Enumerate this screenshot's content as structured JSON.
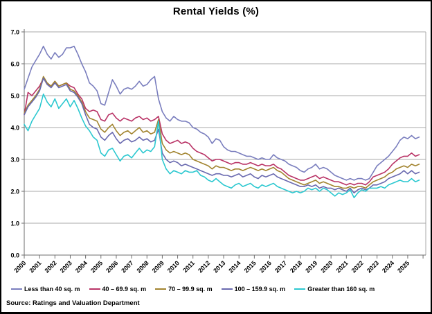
{
  "chart_data": {
    "type": "line",
    "title": "Rental Yields (%)",
    "source_note": "Source: Ratings and Valuation Department",
    "xlabel": "",
    "ylabel": "",
    "grid": true,
    "legend_position": "bottom",
    "ylim": [
      0.0,
      7.0
    ],
    "y_tick_labels": [
      "0.0",
      "1.0",
      "2.0",
      "3.0",
      "4.0",
      "5.0",
      "6.0",
      "7.0"
    ],
    "x_start": 2000,
    "x_step": 0.25,
    "x_tick_labels": [
      "2000",
      "2001",
      "2002",
      "2003",
      "2004",
      "2005",
      "2006",
      "2007",
      "2008",
      "2009",
      "2010",
      "2011",
      "2012",
      "2013",
      "2014",
      "2015",
      "2016",
      "2017",
      "2018",
      "2019",
      "2020",
      "2021",
      "2022",
      "2023",
      "2024",
      "2025"
    ],
    "colors": {
      "grid": "#a8a8a8",
      "axis": "#6e6e6e",
      "text": "#000000"
    },
    "series": [
      {
        "name": "Less than 40 sq. m",
        "color": "#7a7ebe",
        "values": [
          5.2,
          5.55,
          5.9,
          6.1,
          6.3,
          6.55,
          6.3,
          6.15,
          6.35,
          6.2,
          6.3,
          6.5,
          6.5,
          6.55,
          6.3,
          6.0,
          5.75,
          5.4,
          5.3,
          5.15,
          4.75,
          4.7,
          5.1,
          5.5,
          5.3,
          5.05,
          5.2,
          5.25,
          5.2,
          5.3,
          5.45,
          5.3,
          5.35,
          5.5,
          5.6,
          4.9,
          4.5,
          4.3,
          4.2,
          4.35,
          4.25,
          4.2,
          4.2,
          4.15,
          4.0,
          3.95,
          3.85,
          3.8,
          3.7,
          3.5,
          3.65,
          3.6,
          3.4,
          3.3,
          3.25,
          3.25,
          3.2,
          3.15,
          3.1,
          3.1,
          3.05,
          3.0,
          3.05,
          3.0,
          3.0,
          3.15,
          3.05,
          3.0,
          2.95,
          2.85,
          2.8,
          2.75,
          2.65,
          2.6,
          2.7,
          2.75,
          2.85,
          2.7,
          2.75,
          2.7,
          2.6,
          2.5,
          2.45,
          2.4,
          2.35,
          2.4,
          2.35,
          2.4,
          2.4,
          2.35,
          2.4,
          2.6,
          2.8,
          2.9,
          3.0,
          3.1,
          3.25,
          3.4,
          3.6,
          3.7,
          3.65,
          3.75,
          3.65,
          3.7
        ]
      },
      {
        "name": "40 – 69.9 sq. m",
        "color": "#b93366",
        "values": [
          4.4,
          5.1,
          5.0,
          5.15,
          5.3,
          5.55,
          5.35,
          5.3,
          5.45,
          5.3,
          5.35,
          5.4,
          5.3,
          5.25,
          5.05,
          4.9,
          4.6,
          4.5,
          4.55,
          4.5,
          4.25,
          4.2,
          4.4,
          4.45,
          4.3,
          4.2,
          4.3,
          4.25,
          4.2,
          4.3,
          4.35,
          4.25,
          4.3,
          4.2,
          4.25,
          4.35,
          3.8,
          3.6,
          3.5,
          3.55,
          3.6,
          3.5,
          3.55,
          3.5,
          3.35,
          3.25,
          3.2,
          3.15,
          3.05,
          2.95,
          3.0,
          3.0,
          2.95,
          2.9,
          2.85,
          2.9,
          2.9,
          2.85,
          2.85,
          2.9,
          2.85,
          2.8,
          2.85,
          2.8,
          2.8,
          2.85,
          2.75,
          2.7,
          2.6,
          2.5,
          2.45,
          2.4,
          2.35,
          2.35,
          2.4,
          2.45,
          2.5,
          2.4,
          2.45,
          2.4,
          2.35,
          2.3,
          2.3,
          2.25,
          2.2,
          2.25,
          2.2,
          2.25,
          2.25,
          2.2,
          2.3,
          2.45,
          2.5,
          2.55,
          2.6,
          2.7,
          2.85,
          2.95,
          3.05,
          3.1,
          3.1,
          3.2,
          3.1,
          3.15
        ]
      },
      {
        "name": "70 – 99.9 sq. m",
        "color": "#a2842f",
        "values": [
          4.45,
          4.7,
          4.85,
          5.0,
          5.2,
          5.6,
          5.4,
          5.3,
          5.45,
          5.3,
          5.35,
          5.4,
          5.2,
          5.15,
          5.0,
          4.8,
          4.5,
          4.3,
          4.25,
          4.2,
          3.95,
          3.85,
          4.0,
          4.1,
          3.9,
          3.75,
          3.85,
          3.9,
          3.8,
          3.9,
          4.0,
          3.85,
          3.9,
          3.8,
          3.85,
          4.25,
          3.5,
          3.3,
          3.2,
          3.25,
          3.2,
          3.15,
          3.2,
          3.15,
          3.0,
          2.95,
          2.9,
          2.85,
          2.8,
          2.7,
          2.8,
          2.75,
          2.75,
          2.7,
          2.65,
          2.7,
          2.7,
          2.65,
          2.7,
          2.75,
          2.7,
          2.65,
          2.7,
          2.65,
          2.7,
          2.75,
          2.65,
          2.6,
          2.5,
          2.4,
          2.35,
          2.3,
          2.25,
          2.2,
          2.25,
          2.3,
          2.35,
          2.25,
          2.3,
          2.25,
          2.2,
          2.15,
          2.15,
          2.1,
          2.1,
          2.15,
          2.1,
          2.15,
          2.15,
          2.1,
          2.2,
          2.3,
          2.35,
          2.4,
          2.45,
          2.55,
          2.6,
          2.7,
          2.75,
          2.8,
          2.75,
          2.85,
          2.8,
          2.85
        ]
      },
      {
        "name": "100 – 159.9 sq. m",
        "color": "#6969af",
        "values": [
          4.4,
          4.65,
          4.8,
          4.95,
          5.15,
          5.55,
          5.35,
          5.25,
          5.4,
          5.25,
          5.3,
          5.35,
          5.15,
          5.1,
          4.95,
          4.75,
          4.4,
          4.1,
          4.0,
          3.95,
          3.7,
          3.6,
          3.75,
          3.85,
          3.65,
          3.5,
          3.6,
          3.65,
          3.55,
          3.6,
          3.7,
          3.6,
          3.65,
          3.55,
          3.6,
          3.95,
          3.2,
          3.0,
          2.9,
          2.95,
          2.9,
          2.8,
          2.85,
          2.8,
          2.75,
          2.7,
          2.65,
          2.6,
          2.55,
          2.5,
          2.55,
          2.55,
          2.5,
          2.5,
          2.45,
          2.5,
          2.55,
          2.45,
          2.5,
          2.55,
          2.45,
          2.4,
          2.5,
          2.45,
          2.5,
          2.55,
          2.45,
          2.4,
          2.35,
          2.3,
          2.25,
          2.2,
          2.15,
          2.15,
          2.2,
          2.15,
          2.2,
          2.1,
          2.15,
          2.1,
          2.1,
          2.05,
          2.1,
          2.05,
          2.0,
          2.1,
          1.95,
          2.05,
          2.1,
          2.05,
          2.1,
          2.2,
          2.2,
          2.25,
          2.3,
          2.4,
          2.45,
          2.5,
          2.55,
          2.65,
          2.55,
          2.65,
          2.55,
          2.6
        ]
      },
      {
        "name": "Greater than 160 sq. m",
        "color": "#2cc8d0",
        "values": [
          4.1,
          3.9,
          4.2,
          4.4,
          4.6,
          5.05,
          4.8,
          4.65,
          4.9,
          4.6,
          4.75,
          4.9,
          4.65,
          4.85,
          4.6,
          4.3,
          4.05,
          3.9,
          3.7,
          3.6,
          3.2,
          3.1,
          3.3,
          3.35,
          3.15,
          2.95,
          3.1,
          3.15,
          3.05,
          3.2,
          3.35,
          3.2,
          3.3,
          3.25,
          3.4,
          4.2,
          3.0,
          2.7,
          2.55,
          2.65,
          2.6,
          2.55,
          2.65,
          2.6,
          2.6,
          2.65,
          2.5,
          2.45,
          2.35,
          2.3,
          2.4,
          2.3,
          2.2,
          2.15,
          2.1,
          2.2,
          2.25,
          2.15,
          2.2,
          2.25,
          2.15,
          2.1,
          2.2,
          2.15,
          2.2,
          2.25,
          2.15,
          2.1,
          2.05,
          2.0,
          1.95,
          2.0,
          1.95,
          2.0,
          2.1,
          2.05,
          2.1,
          2.0,
          2.1,
          2.05,
          1.95,
          1.85,
          1.95,
          1.9,
          1.95,
          2.05,
          1.8,
          1.95,
          2.05,
          2.0,
          2.1,
          2.1,
          2.1,
          2.15,
          2.1,
          2.2,
          2.25,
          2.3,
          2.35,
          2.3,
          2.3,
          2.4,
          2.3,
          2.35
        ]
      }
    ]
  }
}
